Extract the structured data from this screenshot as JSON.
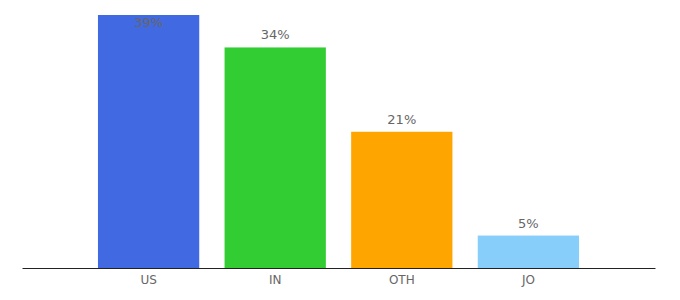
{
  "chart_data": {
    "type": "bar",
    "categories": [
      "US",
      "IN",
      "OTH",
      "JO"
    ],
    "values": [
      39,
      34,
      21,
      5
    ],
    "value_labels": [
      "39%",
      "34%",
      "21%",
      "5%"
    ],
    "colors": [
      "#4169e1",
      "#32cd32",
      "#ffa500",
      "#87cefa"
    ],
    "data_labels": true,
    "tick_labels": "x"
  }
}
